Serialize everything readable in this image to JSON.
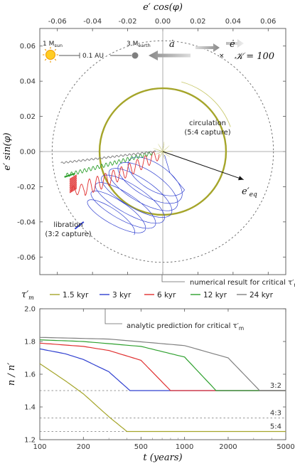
{
  "chart_data": [
    {
      "type": "line",
      "subtype": "phase-space trajectories",
      "xlabel_top": "e′ cos(φ)",
      "ylabel": "e′ sin(φ)",
      "xlim": [
        -0.07,
        0.07
      ],
      "ylim": [
        -0.07,
        0.07
      ],
      "x_ticks": [
        "-0.06",
        "-0.04",
        "-0.02",
        "0.00",
        "0.02",
        "0.04",
        "0.06"
      ],
      "y_ticks": [
        "0.06",
        "0.04",
        "0.02",
        "0.00",
        "-0.02",
        "-0.04",
        "-0.06"
      ],
      "annotations": {
        "sun_mass": "1 M",
        "sun_sub": "sun",
        "separation": "0.1 AU",
        "planet_mass": "3 M",
        "planet_sub": "earth",
        "adot": "ȧ",
        "edot": "ė",
        "kappa": "𝒦 = 100",
        "circulation_title": "circulation",
        "circulation_sub": "(5:4 capture)",
        "libration_title": "libration",
        "libration_sub": "(3:2 capture)",
        "eeq": "e′",
        "eeq_sub": "eq",
        "numerical_note": "numerical result for critical τ′",
        "numerical_sub": "m"
      },
      "circulation_circle": {
        "center": [
          0.0,
          0.0
        ],
        "radius": 0.036,
        "color": "#a5a52a"
      },
      "dashed_circle": {
        "center": [
          0.0,
          0.0
        ],
        "radius": 0.063
      },
      "eeq_vector": {
        "from": [
          0.0,
          0.0
        ],
        "to": [
          0.046,
          -0.016
        ]
      },
      "series": [
        {
          "name": "24 kyr",
          "color": "#808080",
          "x": [
            -0.058,
            -0.046,
            -0.034,
            -0.022,
            -0.012,
            -0.004
          ],
          "y": [
            -0.0065,
            -0.0055,
            -0.0042,
            -0.0028,
            -0.0012,
            0.0
          ]
        },
        {
          "name": "12 kyr",
          "color": "#2ea02e",
          "x": [
            -0.055,
            -0.045,
            -0.035,
            -0.025,
            -0.015,
            -0.006
          ],
          "y": [
            -0.0135,
            -0.0115,
            -0.009,
            -0.0065,
            -0.0038,
            -0.0008
          ]
        },
        {
          "name": "6 kyr",
          "color": "#e03030",
          "x": [
            -0.052,
            -0.044,
            -0.034,
            -0.024,
            -0.014,
            -0.005
          ],
          "y": [
            -0.0225,
            -0.02,
            -0.016,
            -0.012,
            -0.0055,
            0.0
          ]
        },
        {
          "name": "3 kyr",
          "color": "#3040d0",
          "x": [
            -0.045,
            -0.032,
            -0.018,
            -0.004,
            0.006,
            0.002
          ],
          "y": [
            -0.037,
            -0.042,
            -0.044,
            -0.039,
            -0.028,
            -0.003
          ]
        },
        {
          "name": "1.5 kyr",
          "color": "#a5a52a",
          "x": [
            0.0,
            0.025,
            0.036,
            0.025,
            0.0
          ],
          "y": [
            0.0,
            0.025,
            0.0,
            -0.025,
            -0.036
          ]
        }
      ]
    },
    {
      "type": "line",
      "xlabel": "t  (years)",
      "ylabel": "n / n′",
      "xscale": "log",
      "xlim": [
        100,
        5000
      ],
      "ylim": [
        1.2,
        2.0
      ],
      "x_ticks": [
        100,
        200,
        500,
        1000,
        2000,
        5000
      ],
      "y_ticks": [
        1.2,
        1.4,
        1.6,
        1.8,
        2.0
      ],
      "legend_title": "τ′",
      "legend_title_sub": "m",
      "analytic_note": "analytic prediction for critical τ′",
      "analytic_sub": "m",
      "resonances": [
        {
          "label": "3:2",
          "value": 1.5
        },
        {
          "label": "4:3",
          "value": 1.3333
        },
        {
          "label": "5:4",
          "value": 1.25
        }
      ],
      "series": [
        {
          "name": "1.5 kyr",
          "color": "#a5a52a",
          "x": [
            100,
            150,
            200,
            300,
            400,
            5000
          ],
          "y": [
            1.665,
            1.56,
            1.48,
            1.34,
            1.25,
            1.25
          ]
        },
        {
          "name": "3 kyr",
          "color": "#3040d0",
          "x": [
            100,
            150,
            200,
            300,
            420,
            5000
          ],
          "y": [
            1.755,
            1.725,
            1.69,
            1.615,
            1.5,
            1.5
          ]
        },
        {
          "name": "6 kyr",
          "color": "#e03030",
          "x": [
            100,
            200,
            300,
            500,
            800,
            5000
          ],
          "y": [
            1.79,
            1.77,
            1.745,
            1.685,
            1.5,
            1.5
          ]
        },
        {
          "name": "12 kyr",
          "color": "#2ea02e",
          "x": [
            100,
            200,
            500,
            1000,
            1650,
            5000
          ],
          "y": [
            1.81,
            1.8,
            1.77,
            1.705,
            1.5,
            1.5
          ]
        },
        {
          "name": "24 kyr",
          "color": "#808080",
          "x": [
            100,
            300,
            1000,
            2000,
            3300,
            5000
          ],
          "y": [
            1.825,
            1.815,
            1.775,
            1.7,
            1.5,
            1.5
          ]
        }
      ]
    }
  ]
}
